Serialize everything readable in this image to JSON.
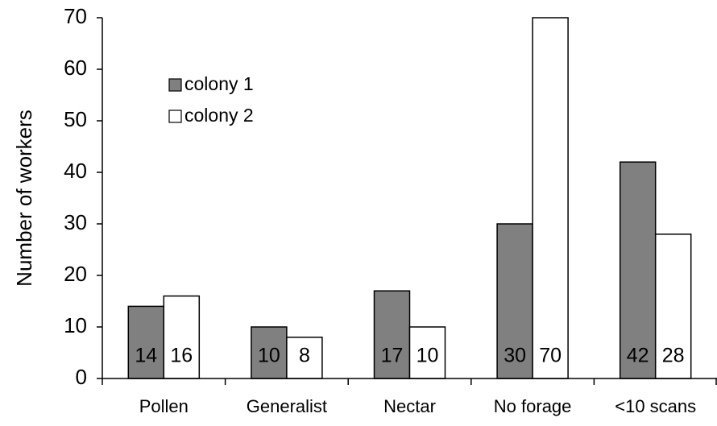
{
  "chart_data": {
    "type": "bar",
    "ylabel": "Number of workers",
    "categories": [
      "Pollen",
      "Generalist",
      "Nectar",
      "No forage",
      "<10 scans"
    ],
    "series": [
      {
        "name": "colony 1",
        "color": "#808080",
        "values": [
          14,
          10,
          17,
          30,
          42
        ]
      },
      {
        "name": "colony 2",
        "color": "#ffffff",
        "values": [
          16,
          8,
          10,
          70,
          28
        ]
      }
    ],
    "ylim": [
      0,
      70
    ],
    "yticks": [
      0,
      10,
      20,
      30,
      40,
      50,
      60,
      70
    ],
    "grid": false,
    "legend": "upper left"
  }
}
